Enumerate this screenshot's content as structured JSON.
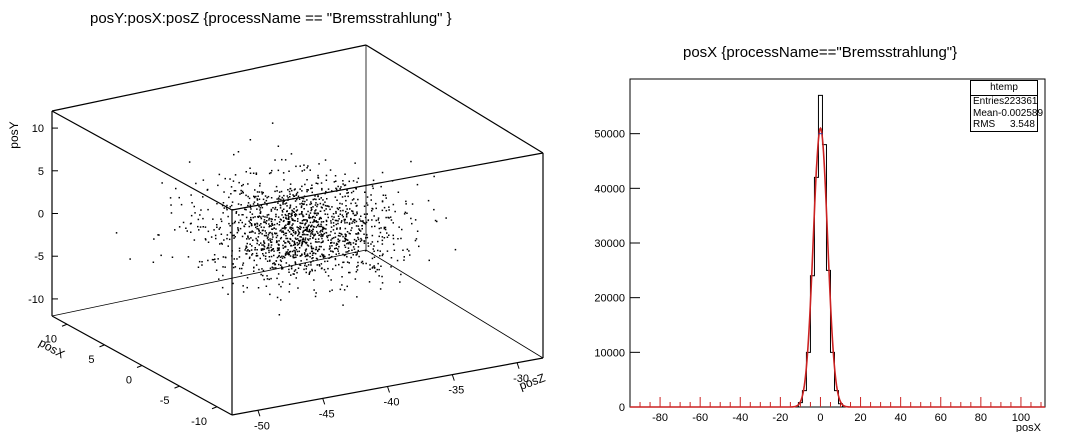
{
  "chart_data": [
    {
      "type": "scatter",
      "title": "posY:posX:posZ {processName == \"Bremsstrahlung\" }",
      "axes": {
        "y": {
          "label": "posY",
          "ticks": [
            "10",
            "5",
            "0",
            "-5",
            "-10"
          ],
          "range": [
            -12,
            12
          ]
        },
        "x": {
          "label": "posX",
          "ticks": [
            "10",
            "5",
            "0",
            "-5",
            "-10"
          ],
          "range": [
            -12,
            12
          ]
        },
        "z": {
          "label": "posZ",
          "ticks": [
            "-50",
            "-45",
            "-40",
            "-35",
            "-30"
          ],
          "range": [
            -52,
            -28
          ]
        }
      },
      "points": {
        "count": 1500,
        "center": {
          "x": 0,
          "y": -3,
          "z": -40
        },
        "sigma": 3.5
      }
    },
    {
      "type": "histogram",
      "title": "posX {processName==\"Bremsstrahlung\"}",
      "xlabel": "posX",
      "xlim": [
        -95,
        112
      ],
      "ylim": [
        0,
        60000
      ],
      "x_ticks": [
        "-80",
        "-60",
        "-40",
        "-20",
        "0",
        "20",
        "40",
        "60",
        "80",
        "100"
      ],
      "y_ticks": [
        "0",
        "10000",
        "20000",
        "30000",
        "40000",
        "50000"
      ],
      "bin_width": 2,
      "bins_x": [
        -12,
        -10,
        -8,
        -6,
        -4,
        -2,
        0,
        2,
        4,
        6,
        8,
        10,
        12
      ],
      "bins_y": [
        0,
        800,
        3000,
        10000,
        24000,
        42000,
        57000,
        48000,
        25000,
        10000,
        3000,
        600,
        0
      ],
      "fit": {
        "color": "#cc2222",
        "mean": 0,
        "sigma": 3.548,
        "peak": 51000
      },
      "stats": {
        "name": "htemp",
        "rows": [
          {
            "label": "Entries",
            "value": "223361"
          },
          {
            "label": "Mean",
            "value": "-0.002589"
          },
          {
            "label": "RMS",
            "value": "3.548"
          }
        ]
      }
    }
  ]
}
